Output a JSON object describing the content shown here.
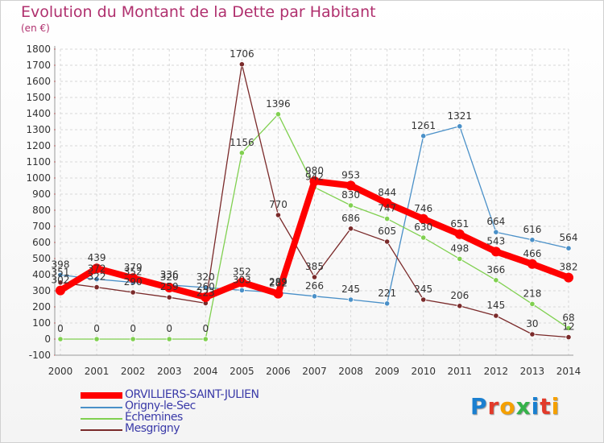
{
  "header": {
    "title": "Evolution du Montant de la Dette par Habitant",
    "subtitle": "(en €)"
  },
  "logo": {
    "text": "Proxiti",
    "letters": [
      {
        "ch": "P",
        "color": "#1a7fd0"
      },
      {
        "ch": "r",
        "color": "#e23a2a"
      },
      {
        "ch": "o",
        "color": "#f5a000"
      },
      {
        "ch": "x",
        "color": "#36b24a"
      },
      {
        "ch": "i",
        "color": "#1a7fd0"
      },
      {
        "ch": "t",
        "color": "#e23a2a"
      },
      {
        "ch": "i",
        "color": "#f5a000"
      }
    ]
  },
  "colors": {
    "title": "#b0306e",
    "legend_text": "#3a3aa8",
    "grid": "#d8d8d8"
  },
  "chart_data": {
    "type": "line",
    "title": "Evolution du Montant de la Dette par Habitant",
    "subtitle": "(en €)",
    "x": [
      2000,
      2001,
      2002,
      2003,
      2004,
      2005,
      2006,
      2007,
      2008,
      2009,
      2010,
      2011,
      2012,
      2013,
      2014
    ],
    "ylim": [
      -100,
      1800
    ],
    "yticks": [
      -100,
      0,
      100,
      200,
      300,
      400,
      500,
      600,
      700,
      800,
      900,
      1000,
      1100,
      1200,
      1300,
      1400,
      1500,
      1600,
      1700,
      1800
    ],
    "grid": true,
    "legend_position": "bottom-left",
    "series": [
      {
        "name": "ORVILLIERS-SAINT-JULIEN",
        "color": "#ff0000",
        "width": 8,
        "values": [
          302,
          439,
          379,
          320,
          260,
          352,
          282,
          980,
          953,
          844,
          746,
          651,
          543,
          466,
          382
        ],
        "labels": [
          "302",
          "439",
          "379",
          "320",
          "260",
          "352",
          "282",
          "980",
          "953",
          "844",
          "746",
          "651",
          "543",
          "466",
          "382"
        ]
      },
      {
        "name": "Origny-le-Sec",
        "color": "#4a90c8",
        "width": 1.3,
        "values": [
          398,
          372,
          352,
          336,
          320,
          303,
          289,
          266,
          245,
          221,
          1261,
          1321,
          664,
          616,
          564
        ],
        "labels": [
          "398",
          "372",
          "352",
          "336",
          "320",
          "303",
          "289",
          "266",
          "245",
          "221",
          "1261",
          "1321",
          "664",
          "616",
          "564"
        ]
      },
      {
        "name": "Échemines",
        "color": "#80d050",
        "width": 1.3,
        "values": [
          0,
          0,
          0,
          0,
          0,
          1156,
          1396,
          942,
          830,
          747,
          630,
          498,
          366,
          218,
          68
        ],
        "labels": [
          "0",
          "0",
          "0",
          "0",
          "0",
          "1156",
          "1396",
          "942",
          "830",
          "747",
          "630",
          "498",
          "366",
          "218",
          "68"
        ]
      },
      {
        "name": "Mesgrigny",
        "color": "#7a2a2a",
        "width": 1.3,
        "values": [
          351,
          322,
          290,
          259,
          223,
          1706,
          770,
          385,
          686,
          605,
          245,
          206,
          145,
          30,
          12
        ],
        "labels": [
          "351",
          "322",
          "290",
          "259",
          "223",
          "1706",
          "770",
          "385",
          "686",
          "605",
          "245",
          "206",
          "145",
          "30",
          "12"
        ]
      }
    ]
  }
}
